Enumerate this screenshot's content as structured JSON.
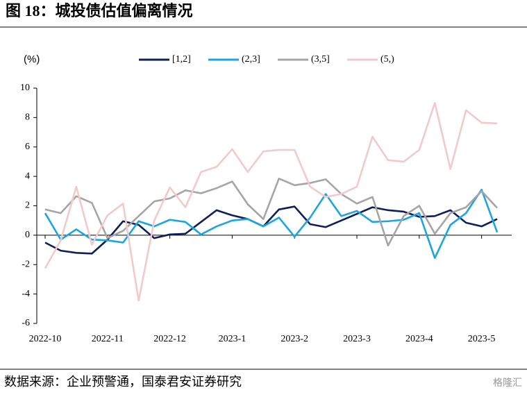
{
  "chart_data": {
    "type": "line",
    "title": "图 18：城投债估值偏离情况",
    "y_label": "(%)",
    "source": "数据来源：企业预警通，国泰君安证券研究",
    "watermark": "格隆汇",
    "categories": [
      "2022-10",
      null,
      null,
      null,
      "2022-11",
      null,
      null,
      null,
      "2022-12",
      null,
      null,
      null,
      "2023-1",
      null,
      null,
      null,
      "2023-2",
      null,
      null,
      null,
      "2023-3",
      null,
      null,
      null,
      "2023-4",
      null,
      null,
      null,
      "2023-5",
      null
    ],
    "series": [
      {
        "name": "[1,2]",
        "color": "#0e1f5b",
        "values": [
          -0.5,
          -1.05,
          -1.2,
          -1.25,
          -0.3,
          0.95,
          0.7,
          -0.2,
          0.05,
          0.1,
          0.9,
          1.7,
          1.35,
          1.1,
          0.6,
          1.75,
          1.95,
          0.75,
          0.55,
          1.0,
          1.45,
          1.9,
          1.7,
          1.6,
          1.25,
          1.3,
          1.7,
          0.85,
          0.6,
          1.1
        ]
      },
      {
        "name": "(2,3]",
        "color": "#1aa7e0",
        "values": [
          1.5,
          -0.3,
          0.4,
          -0.3,
          -0.35,
          -0.5,
          0.95,
          0.6,
          1.05,
          0.9,
          0.05,
          0.6,
          1.0,
          1.1,
          0.6,
          1.2,
          -0.1,
          1.2,
          2.8,
          1.3,
          1.65,
          0.9,
          0.95,
          1.05,
          1.5,
          -1.55,
          0.7,
          1.5,
          3.1,
          0.2
        ]
      },
      {
        "name": "(3,5]",
        "color": "#a5a5a5",
        "values": [
          1.75,
          1.5,
          2.65,
          2.2,
          -0.2,
          0.3,
          1.3,
          2.3,
          2.5,
          3.05,
          2.85,
          3.2,
          3.65,
          2.1,
          1.1,
          3.85,
          3.4,
          3.55,
          3.8,
          2.8,
          2.15,
          2.6,
          -0.7,
          1.3,
          2.0,
          0.1,
          1.5,
          1.9,
          3.0,
          1.85
        ]
      },
      {
        "name": "(5,)",
        "color": "#f2caca",
        "values": [
          -2.25,
          -0.35,
          3.3,
          -0.65,
          1.35,
          2.15,
          -4.45,
          1.0,
          3.25,
          1.9,
          4.3,
          4.65,
          5.85,
          4.3,
          5.7,
          5.8,
          5.8,
          3.3,
          2.6,
          2.8,
          3.3,
          6.7,
          5.1,
          5.0,
          5.8,
          9.0,
          4.5,
          8.5,
          7.65,
          7.6
        ]
      }
    ],
    "ylim": [
      -6,
      10
    ],
    "yticks": [
      -6,
      -4,
      -2,
      0,
      2,
      4,
      6,
      8,
      10
    ],
    "legend": "top"
  }
}
